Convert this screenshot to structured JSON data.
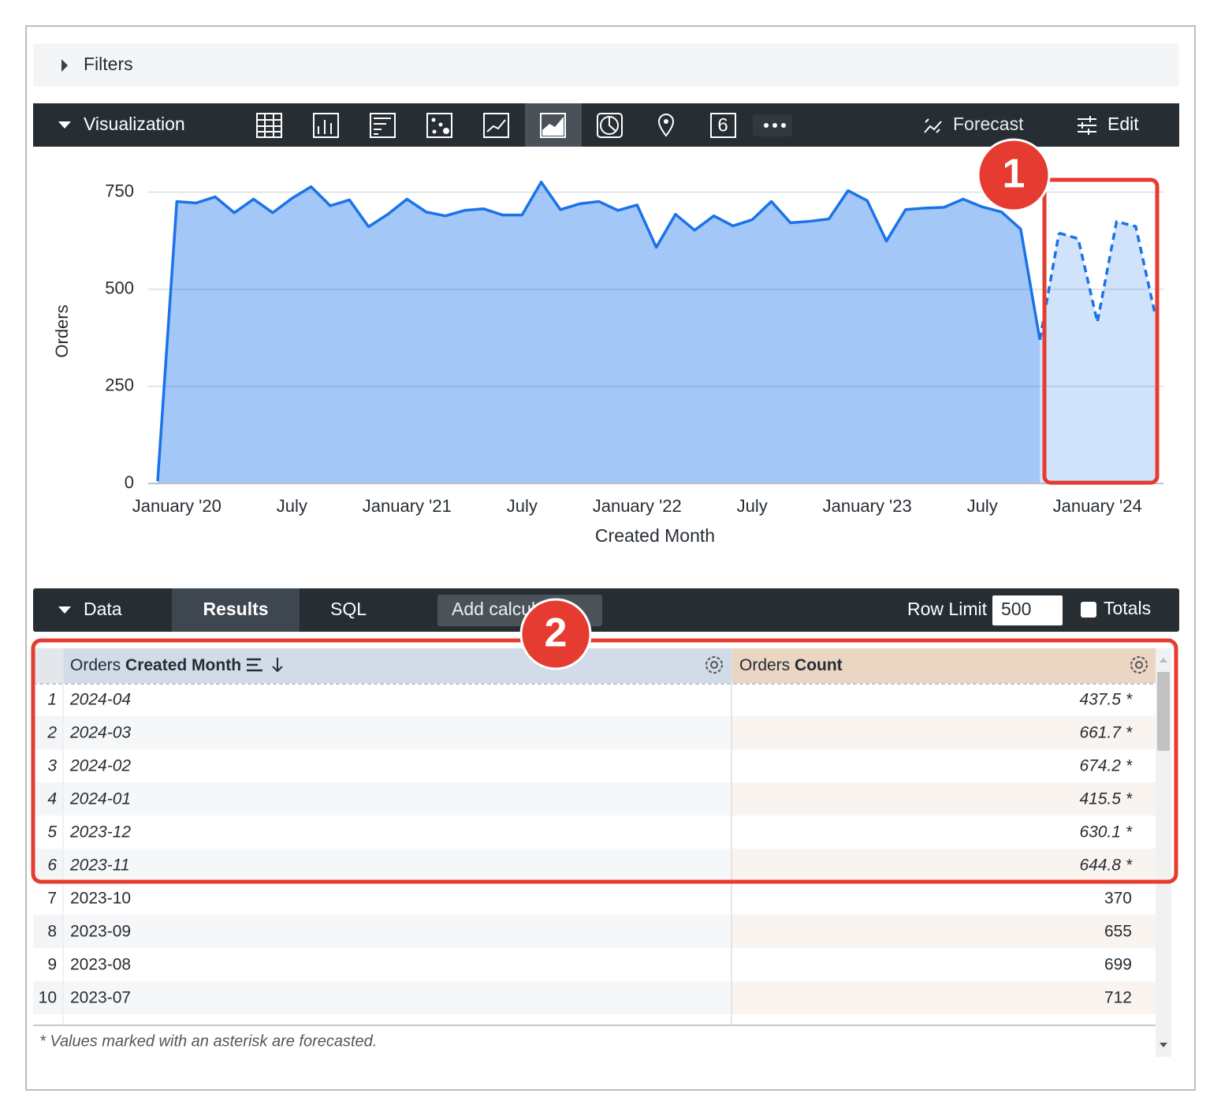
{
  "filters": {
    "label": "Filters"
  },
  "toolbar": {
    "label": "Visualization",
    "single_value_icon": "6",
    "forecast": "Forecast",
    "edit": "Edit"
  },
  "chart_data": {
    "type": "area",
    "x_label": "Created Month",
    "y_label": "Orders",
    "categories": [
      null,
      "January '20",
      null,
      null,
      null,
      null,
      null,
      "July",
      null,
      null,
      null,
      null,
      null,
      "January '21",
      null,
      null,
      null,
      null,
      null,
      "July",
      null,
      null,
      null,
      null,
      null,
      "January '22",
      null,
      null,
      null,
      null,
      null,
      "July",
      null,
      null,
      null,
      null,
      null,
      "January '23",
      null,
      null,
      null,
      null,
      null,
      "July",
      null,
      null,
      null,
      null,
      null,
      "January '24",
      null,
      null,
      null
    ],
    "series": [
      {
        "color": "#1a73e8",
        "line_style": "solid",
        "values": [
          6,
          726,
          722,
          738,
          697,
          732,
          697,
          734,
          764,
          715,
          730,
          661,
          693,
          732,
          699,
          689,
          703,
          707,
          691,
          691,
          776,
          705,
          720,
          726,
          703,
          717,
          608,
          693,
          652,
          689,
          663,
          679,
          726,
          671,
          675,
          681,
          754,
          728,
          624,
          705,
          709,
          711,
          732,
          712,
          699,
          655,
          370,
          null,
          null,
          null,
          null,
          null,
          null
        ]
      },
      {
        "color": "#1a73e8",
        "line_style": "dashed",
        "values": [
          null,
          null,
          null,
          null,
          null,
          null,
          null,
          null,
          null,
          null,
          null,
          null,
          null,
          null,
          null,
          null,
          null,
          null,
          null,
          null,
          null,
          null,
          null,
          null,
          null,
          null,
          null,
          null,
          null,
          null,
          null,
          null,
          null,
          null,
          null,
          null,
          null,
          null,
          null,
          null,
          null,
          null,
          null,
          null,
          null,
          null,
          null,
          644.8,
          630.1,
          415.5,
          674.2,
          661.7,
          437.5
        ]
      }
    ],
    "ylim": [
      0,
      800
    ],
    "yticks": [
      0,
      250,
      500,
      750
    ],
    "grid": true
  },
  "data_bar": {
    "label": "Data",
    "tabs": [
      "Results",
      "SQL"
    ],
    "add_calculation": "Add calculation",
    "row_limit_label": "Row Limit",
    "row_limit": "500",
    "totals": "Totals"
  },
  "table": {
    "headers": [
      [
        "Orders",
        "Created Month"
      ],
      [
        "Orders",
        "Count"
      ]
    ],
    "rows": [
      [
        "1",
        "2024-04",
        "437.5 *"
      ],
      [
        "2",
        "2024-03",
        "661.7 *"
      ],
      [
        "3",
        "2024-02",
        "674.2 *"
      ],
      [
        "4",
        "2024-01",
        "415.5 *"
      ],
      [
        "5",
        "2023-12",
        "630.1 *"
      ],
      [
        "6",
        "2023-11",
        "644.8 *"
      ],
      [
        "7",
        "2023-10",
        "370"
      ],
      [
        "8",
        "2023-09",
        "655"
      ],
      [
        "9",
        "2023-08",
        "699"
      ],
      [
        "10",
        "2023-07",
        "712"
      ]
    ],
    "footnote": "* Values marked with an asterisk are forecasted."
  },
  "callouts": [
    "1",
    "2"
  ]
}
